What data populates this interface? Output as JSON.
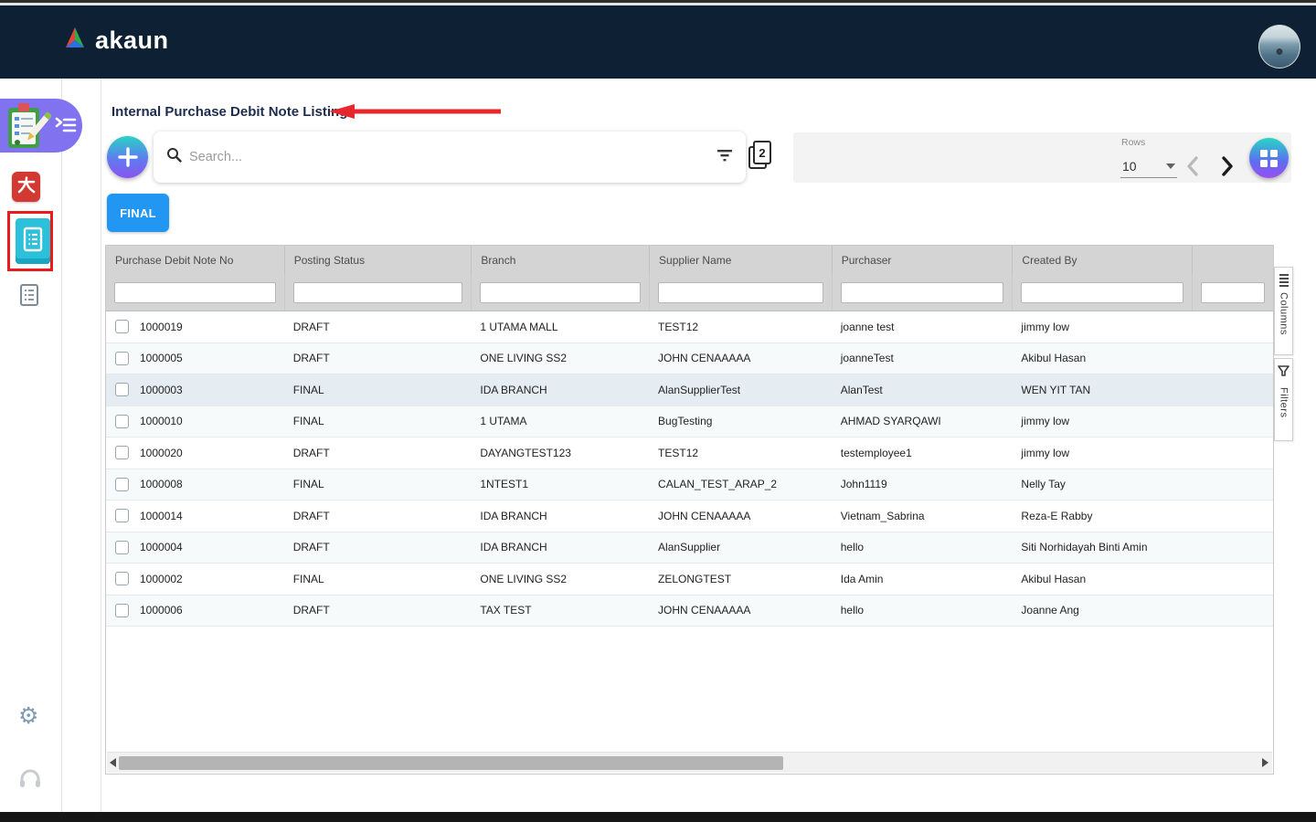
{
  "header": {
    "brand": "akaun"
  },
  "page": {
    "title": "Internal Purchase Debit Note Listing"
  },
  "toolbar": {
    "search_placeholder": "Search...",
    "pages_badge": "2",
    "rows_label": "Rows",
    "rows_value": "10"
  },
  "actions": {
    "final_label": "FINAL"
  },
  "side_tabs": {
    "columns": "Columns",
    "filters": "Filters"
  },
  "colors": {
    "header_bg": "#0e2134",
    "accent_purple": "#8173f0",
    "accent_cyan": "#2cc0da",
    "primary_button": "#2196f3",
    "gradient_top": "#27d6c3",
    "gradient_bottom": "#9a4df0",
    "annotation_red": "#e8272c",
    "grid_header_bg": "#d4d4d4",
    "selected_row_bg": "#e5edf2"
  },
  "table": {
    "columns": [
      "Purchase Debit Note No",
      "Posting Status",
      "Branch",
      "Supplier Name",
      "Purchaser",
      "Created By",
      ""
    ],
    "highlighted_row_index": 2,
    "rows": [
      [
        "1000019",
        "DRAFT",
        "1 UTAMA MALL",
        "TEST12",
        "joanne test",
        "jimmy low"
      ],
      [
        "1000005",
        "DRAFT",
        "ONE LIVING SS2",
        "JOHN CENAAAAA",
        "joanneTest",
        "Akibul Hasan"
      ],
      [
        "1000003",
        "FINAL",
        "IDA BRANCH",
        "AlanSupplierTest",
        "AlanTest",
        "WEN YIT TAN"
      ],
      [
        "1000010",
        "FINAL",
        "1 UTAMA",
        "BugTesting",
        "AHMAD SYARQAWI",
        "jimmy low"
      ],
      [
        "1000020",
        "DRAFT",
        "DAYANGTEST123",
        "TEST12",
        "testemployee1",
        "jimmy low"
      ],
      [
        "1000008",
        "FINAL",
        "1NTEST1",
        "CALAN_TEST_ARAP_2",
        "John1119",
        "Nelly Tay"
      ],
      [
        "1000014",
        "DRAFT",
        "IDA BRANCH",
        "JOHN CENAAAAA",
        "Vietnam_Sabrina",
        "Reza-E Rabby"
      ],
      [
        "1000004",
        "DRAFT",
        "IDA BRANCH",
        "AlanSupplier",
        "hello",
        "Siti Norhidayah Binti Amin"
      ],
      [
        "1000002",
        "FINAL",
        "ONE LIVING SS2",
        "ZELONGTEST",
        "Ida Amin",
        "Akibul Hasan"
      ],
      [
        "1000006",
        "DRAFT",
        "TAX TEST",
        "JOHN CENAAAAA",
        "hello",
        "Joanne Ang"
      ]
    ]
  }
}
